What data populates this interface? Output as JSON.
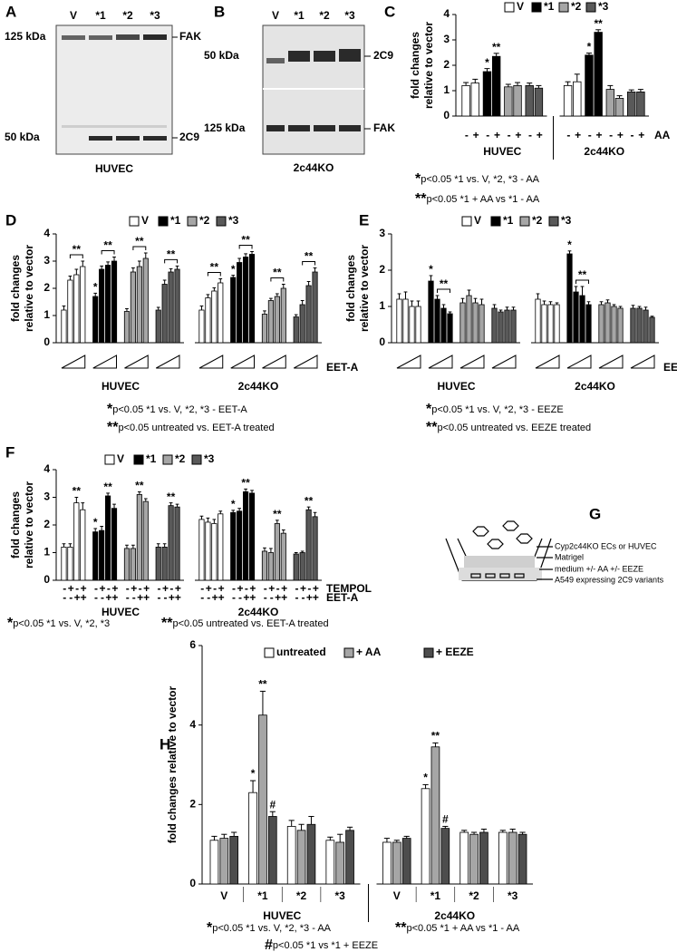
{
  "panels": [
    "A",
    "B",
    "C",
    "D",
    "E",
    "F",
    "G",
    "H"
  ],
  "blots": [
    {
      "lanes": [
        "V",
        "*1",
        "*2",
        "*3"
      ],
      "markers": [
        {
          "mw": "125 kDa",
          "band": "FAK"
        },
        {
          "mw": "50 kDa",
          "band": "2C9"
        }
      ],
      "caption": "HUVEC"
    },
    {
      "lanes": [
        "V",
        "*1",
        "*2",
        "*3"
      ],
      "markers": [
        {
          "mw": "50 kDa",
          "band": "2C9"
        },
        {
          "mw": "125 kDa",
          "band": "FAK"
        }
      ],
      "caption": "2c44KO"
    }
  ],
  "diagram": {
    "labels": [
      "Cyp2c44KO ECs or HUVEC",
      "Matrigel",
      "medium +/- AA +/- EEZE",
      "A549 expressing 2C9 variants"
    ]
  },
  "chart_data": [
    {
      "type": "condition_bar",
      "ylabel": [
        "fold changes",
        "relative to vector"
      ],
      "ylim": [
        0,
        4
      ],
      "yticks": [
        0,
        1,
        2,
        3,
        4
      ],
      "groups": [
        "HUVEC",
        "2c44KO"
      ],
      "condition_rows": [
        {
          "name": "AA",
          "labels": [
            "-",
            "+"
          ]
        }
      ],
      "series": [
        {
          "name": "V",
          "color": "#ffffff",
          "values": [
            1.2,
            1.3,
            1.2,
            1.35
          ],
          "errors": [
            0.12,
            0.15,
            0.15,
            0.3
          ]
        },
        {
          "name": "*1",
          "color": "#000000",
          "values": [
            1.75,
            2.35,
            2.4,
            3.3
          ],
          "errors": [
            0.12,
            0.12,
            0.08,
            0.1
          ],
          "markers": [
            "*",
            "**",
            "*",
            "**"
          ]
        },
        {
          "name": "*2",
          "color": "#a6a6a6",
          "values": [
            1.15,
            1.2,
            1.05,
            0.7
          ],
          "errors": [
            0.1,
            0.12,
            0.15,
            0.1
          ]
        },
        {
          "name": "*3",
          "color": "#595959",
          "values": [
            1.2,
            1.1,
            0.95,
            0.95
          ],
          "errors": [
            0.1,
            0.1,
            0.08,
            0.1
          ]
        }
      ],
      "footnotes": [
        {
          "symbol": "*",
          "text": "p<0.05 *1 vs. V, *2, *3 - AA"
        },
        {
          "symbol": "**",
          "text": "p<0.05 *1 + AA vs *1 - AA"
        }
      ]
    },
    {
      "type": "condition_bar",
      "ylabel": [
        "fold changes",
        "relative to vector"
      ],
      "ylim": [
        0,
        4
      ],
      "yticks": [
        0,
        1,
        2,
        3,
        4
      ],
      "brackets": true,
      "groups": [
        "HUVEC",
        "2c44KO"
      ],
      "condition_rows": [
        {
          "name": "EET-A"
        }
      ],
      "series": [
        {
          "name": "V",
          "color": "#ffffff",
          "values": [
            1.2,
            2.3,
            2.5,
            2.8,
            1.2,
            1.65,
            1.9,
            2.2
          ],
          "errors": [
            0.15,
            0.15,
            0.2,
            0.2,
            0.15,
            0.12,
            0.12,
            0.15
          ],
          "markers": [
            null,
            null,
            "**",
            null,
            null,
            null,
            "**",
            null
          ]
        },
        {
          "name": "*1",
          "color": "#000000",
          "values": [
            1.7,
            2.7,
            2.85,
            3.0,
            2.4,
            2.95,
            3.15,
            3.25
          ],
          "errors": [
            0.12,
            0.12,
            0.12,
            0.15,
            0.08,
            0.15,
            0.12,
            0.1
          ],
          "markers": [
            "*",
            null,
            "**",
            null,
            "*",
            null,
            "**",
            null
          ]
        },
        {
          "name": "*2",
          "color": "#a6a6a6",
          "values": [
            1.15,
            2.6,
            2.8,
            3.1,
            1.05,
            1.55,
            1.7,
            2.0
          ],
          "errors": [
            0.1,
            0.15,
            0.2,
            0.2,
            0.12,
            0.08,
            0.1,
            0.15
          ],
          "markers": [
            null,
            null,
            "**",
            null,
            null,
            null,
            "**",
            null
          ]
        },
        {
          "name": "*3",
          "color": "#595959",
          "values": [
            1.2,
            2.15,
            2.6,
            2.7,
            0.95,
            1.4,
            2.1,
            2.6
          ],
          "errors": [
            0.1,
            0.15,
            0.12,
            0.12,
            0.08,
            0.15,
            0.15,
            0.15
          ],
          "markers": [
            null,
            null,
            "**",
            null,
            null,
            null,
            "**",
            null
          ]
        }
      ],
      "footnotes": [
        {
          "symbol": "*",
          "text": "p<0.05 *1 vs. V, *2, *3 - EET-A"
        },
        {
          "symbol": "**",
          "text": "p<0.05 untreated vs. EET-A treated"
        }
      ]
    },
    {
      "type": "condition_bar",
      "ylabel": [
        "fold changes",
        "relative to vector"
      ],
      "ylim": [
        0,
        3
      ],
      "yticks": [
        0,
        1,
        2,
        3
      ],
      "brackets": true,
      "groups": [
        "HUVEC",
        "2c44KO"
      ],
      "condition_rows": [
        {
          "name": "EEZE"
        }
      ],
      "series": [
        {
          "name": "V",
          "color": "#ffffff",
          "values": [
            1.2,
            1.2,
            1.0,
            1.0,
            1.2,
            1.05,
            1.05,
            1.05
          ],
          "errors": [
            0.15,
            0.2,
            0.15,
            0.15,
            0.15,
            0.1,
            0.08,
            0.05
          ]
        },
        {
          "name": "*1",
          "color": "#000000",
          "values": [
            1.7,
            1.2,
            0.95,
            0.8,
            2.45,
            1.4,
            1.3,
            1.05
          ],
          "errors": [
            0.15,
            0.1,
            0.1,
            0.05,
            0.08,
            0.15,
            0.25,
            0.08
          ],
          "markers": [
            "*",
            null,
            "**",
            null,
            "*",
            null,
            "**",
            null
          ]
        },
        {
          "name": "*2",
          "color": "#a6a6a6",
          "values": [
            1.1,
            1.3,
            1.1,
            1.05,
            1.05,
            1.1,
            1.0,
            0.95
          ],
          "errors": [
            0.12,
            0.15,
            0.12,
            0.15,
            0.08,
            0.08,
            0.05,
            0.05
          ]
        },
        {
          "name": "*3",
          "color": "#595959",
          "values": [
            0.95,
            0.85,
            0.9,
            0.9,
            0.95,
            0.95,
            0.9,
            0.7
          ],
          "errors": [
            0.1,
            0.05,
            0.08,
            0.08,
            0.08,
            0.05,
            0.08,
            0.03
          ]
        }
      ],
      "footnotes": [
        {
          "symbol": "*",
          "text": "p<0.05 *1 vs. V, *2, *3 - EEZE"
        },
        {
          "symbol": "**",
          "text": "p<0.05 untreated vs. EEZE treated"
        }
      ]
    },
    {
      "type": "condition_bar",
      "ylabel": [
        "fold changes",
        "relative to vector"
      ],
      "ylim": [
        0,
        4
      ],
      "yticks": [
        0,
        1,
        2,
        3,
        4
      ],
      "groups": [
        "HUVEC",
        "2c44KO"
      ],
      "condition_rows": [
        {
          "name": "TEMPOL",
          "labels": [
            "-",
            "+",
            "-",
            "+"
          ]
        },
        {
          "name": "EET-A",
          "labels": [
            "-",
            "-",
            "+",
            "+"
          ]
        }
      ],
      "series": [
        {
          "name": "V",
          "color": "#ffffff",
          "values": [
            1.2,
            1.2,
            2.8,
            2.55,
            2.2,
            2.1,
            2.05,
            2.4
          ],
          "errors": [
            0.12,
            0.12,
            0.2,
            0.25,
            0.12,
            0.15,
            0.15,
            0.1
          ],
          "markers": [
            null,
            null,
            "**",
            null,
            null,
            null,
            null,
            null
          ]
        },
        {
          "name": "*1",
          "color": "#000000",
          "values": [
            1.75,
            1.8,
            3.05,
            2.6,
            2.45,
            2.5,
            3.2,
            3.15
          ],
          "errors": [
            0.12,
            0.15,
            0.1,
            0.15,
            0.08,
            0.1,
            0.1,
            0.1
          ],
          "markers": [
            "*",
            null,
            "**",
            null,
            "*",
            null,
            "**",
            null
          ]
        },
        {
          "name": "*2",
          "color": "#a6a6a6",
          "values": [
            1.15,
            1.15,
            3.1,
            2.85,
            1.05,
            1.0,
            2.05,
            1.7
          ],
          "errors": [
            0.12,
            0.12,
            0.1,
            0.1,
            0.12,
            0.15,
            0.12,
            0.12
          ],
          "markers": [
            null,
            null,
            "**",
            null,
            null,
            null,
            "**",
            null
          ]
        },
        {
          "name": "*3",
          "color": "#595959",
          "values": [
            1.2,
            1.2,
            2.7,
            2.65,
            0.95,
            1.0,
            2.55,
            2.3
          ],
          "errors": [
            0.12,
            0.12,
            0.1,
            0.1,
            0.05,
            0.05,
            0.1,
            0.15
          ],
          "markers": [
            null,
            null,
            "**",
            null,
            null,
            null,
            "**",
            null
          ]
        }
      ],
      "footnotes": [
        {
          "symbol": "*",
          "text": "p<0.05 *1 vs. V, *2, *3"
        },
        {
          "symbol": "**",
          "text": "p<0.05 untreated vs. EET-A treated"
        }
      ]
    },
    {
      "type": "grouped_bar",
      "ylabel": "fold changes relative to vector",
      "ylim": [
        0,
        6
      ],
      "yticks": [
        0,
        2,
        4,
        6
      ],
      "groups": [
        "HUVEC",
        "2c44KO"
      ],
      "categories": [
        "V",
        "*1",
        "*2",
        "*3",
        "V",
        "*1",
        "*2",
        "*3"
      ],
      "series": [
        {
          "name": "untreated",
          "color": "#ffffff",
          "values": [
            1.1,
            2.3,
            1.45,
            1.1,
            1.05,
            2.4,
            1.3,
            1.3
          ],
          "errors": [
            0.1,
            0.3,
            0.15,
            0.08,
            0.1,
            0.1,
            0.05,
            0.05
          ],
          "markers": [
            null,
            "*",
            null,
            null,
            null,
            "*",
            null,
            null
          ]
        },
        {
          "name": "+ AA",
          "color": "#a6a6a6",
          "values": [
            1.15,
            4.25,
            1.35,
            1.05,
            1.05,
            3.45,
            1.25,
            1.3
          ],
          "errors": [
            0.1,
            0.6,
            0.15,
            0.2,
            0.05,
            0.1,
            0.05,
            0.08
          ],
          "markers": [
            null,
            "**",
            null,
            null,
            null,
            "**",
            null,
            null
          ]
        },
        {
          "name": "+ EEZE",
          "color": "#4d4d4d",
          "values": [
            1.2,
            1.7,
            1.5,
            1.35,
            1.15,
            1.4,
            1.3,
            1.25
          ],
          "errors": [
            0.1,
            0.12,
            0.2,
            0.08,
            0.05,
            0.05,
            0.08,
            0.05
          ],
          "markers": [
            null,
            "#",
            null,
            null,
            null,
            "#",
            null,
            null
          ]
        }
      ],
      "footnotes": [
        {
          "symbol": "*",
          "text": "p<0.05 *1 vs. V, *2, *3 - AA"
        },
        {
          "symbol": "**",
          "text": "p<0.05 *1 + AA vs *1 - AA"
        },
        {
          "symbol": "#",
          "text": "p<0.05 *1  vs *1 + EEZE"
        }
      ]
    }
  ]
}
